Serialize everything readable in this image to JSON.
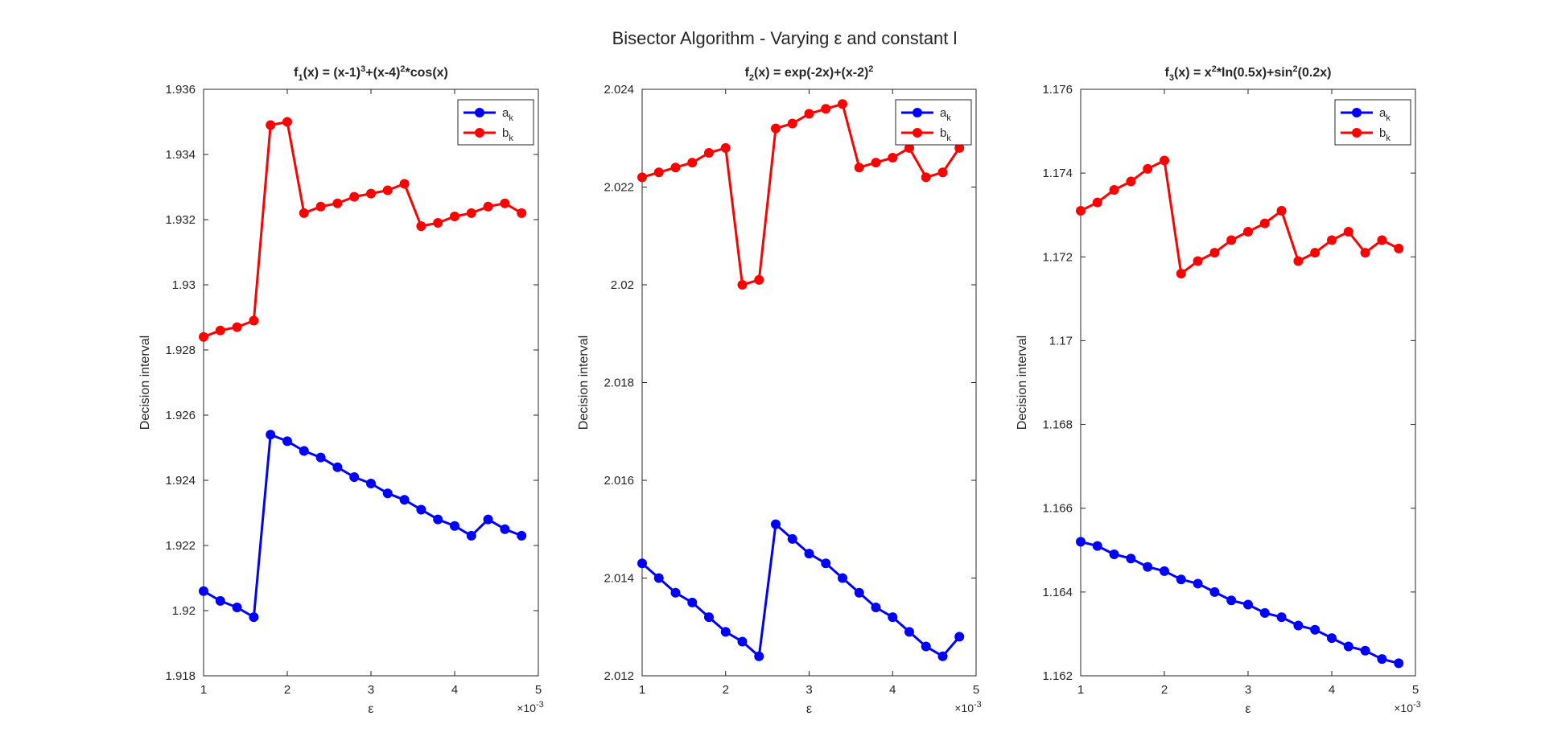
{
  "figure_title": "Bisector Algorithm - Varying ε and constant l",
  "colors": {
    "a_series": "#0000ff",
    "b_series": "#ff0000",
    "axis": "#262626",
    "background": "#ffffff"
  },
  "chart_data": [
    {
      "type": "line",
      "title_main": "f",
      "title_sub": "1",
      "title_expr": [
        {
          "t": "(x) = (x-1)"
        },
        {
          "t": "3",
          "sup": true
        },
        {
          "t": "+(x-4)"
        },
        {
          "t": "2",
          "sup": true
        },
        {
          "t": "*cos(x)"
        }
      ],
      "xlabel": "ε",
      "ylabel": "Decision interval",
      "x_multiplier": "10",
      "x_multiplier_exp": "-3",
      "xlim": [
        1,
        5
      ],
      "ylim": [
        1.918,
        1.936
      ],
      "xticks": [
        1,
        2,
        3,
        4,
        5
      ],
      "xtick_labels": [
        "1",
        "2",
        "3",
        "4",
        "5"
      ],
      "yticks": [
        1.918,
        1.92,
        1.922,
        1.924,
        1.926,
        1.928,
        1.93,
        1.932,
        1.934,
        1.936
      ],
      "ytick_labels": [
        "1.918",
        "1.92",
        "1.922",
        "1.924",
        "1.926",
        "1.928",
        "1.93",
        "1.932",
        "1.934",
        "1.936"
      ],
      "x": [
        1.0,
        1.2,
        1.4,
        1.6,
        1.8,
        2.0,
        2.2,
        2.4,
        2.6,
        2.8,
        3.0,
        3.2,
        3.4,
        3.6,
        3.8,
        4.0,
        4.2,
        4.4,
        4.6,
        4.8
      ],
      "legend_position": "top-right",
      "series": [
        {
          "name": "a",
          "name_sub": "k",
          "color": "#0000ff",
          "values": [
            1.9206,
            1.9203,
            1.9201,
            1.9198,
            1.9254,
            1.9252,
            1.9249,
            1.9247,
            1.9244,
            1.9241,
            1.9239,
            1.9236,
            1.9234,
            1.9231,
            1.9228,
            1.9226,
            1.9223,
            1.9228,
            1.9225,
            1.9223
          ]
        },
        {
          "name": "b",
          "name_sub": "k",
          "color": "#ff0000",
          "values": [
            1.9284,
            1.9286,
            1.9287,
            1.9289,
            1.9349,
            1.935,
            1.9322,
            1.9324,
            1.9325,
            1.9327,
            1.9328,
            1.9329,
            1.9331,
            1.9318,
            1.9319,
            1.9321,
            1.9322,
            1.9324,
            1.9325,
            1.9322
          ]
        }
      ]
    },
    {
      "type": "line",
      "title_main": "f",
      "title_sub": "2",
      "title_expr": [
        {
          "t": "(x) = exp(-2x)+(x-2)"
        },
        {
          "t": "2",
          "sup": true
        }
      ],
      "xlabel": "ε",
      "ylabel": "Decision interval",
      "x_multiplier": "10",
      "x_multiplier_exp": "-3",
      "xlim": [
        1,
        5
      ],
      "ylim": [
        2.012,
        2.024
      ],
      "xticks": [
        1,
        2,
        3,
        4,
        5
      ],
      "xtick_labels": [
        "1",
        "2",
        "3",
        "4",
        "5"
      ],
      "yticks": [
        2.012,
        2.014,
        2.016,
        2.018,
        2.02,
        2.022,
        2.024
      ],
      "ytick_labels": [
        "2.012",
        "2.014",
        "2.016",
        "2.018",
        "2.02",
        "2.022",
        "2.024"
      ],
      "x": [
        1.0,
        1.2,
        1.4,
        1.6,
        1.8,
        2.0,
        2.2,
        2.4,
        2.6,
        2.8,
        3.0,
        3.2,
        3.4,
        3.6,
        3.8,
        4.0,
        4.2,
        4.4,
        4.6,
        4.8
      ],
      "legend_position": "top-right",
      "series": [
        {
          "name": "a",
          "name_sub": "k",
          "color": "#0000ff",
          "values": [
            2.0143,
            2.014,
            2.0137,
            2.0135,
            2.0132,
            2.0129,
            2.0127,
            2.0124,
            2.0151,
            2.0148,
            2.0145,
            2.0143,
            2.014,
            2.0137,
            2.0134,
            2.0132,
            2.0129,
            2.0126,
            2.0124,
            2.0128
          ]
        },
        {
          "name": "b",
          "name_sub": "k",
          "color": "#ff0000",
          "values": [
            2.0222,
            2.0223,
            2.0224,
            2.0225,
            2.0227,
            2.0228,
            2.02,
            2.0201,
            2.0232,
            2.0233,
            2.0235,
            2.0236,
            2.0237,
            2.0224,
            2.0225,
            2.0226,
            2.0228,
            2.0222,
            2.0223,
            2.0228
          ]
        }
      ]
    },
    {
      "type": "line",
      "title_main": "f",
      "title_sub": "3",
      "title_expr": [
        {
          "t": "(x) = x"
        },
        {
          "t": "2",
          "sup": true
        },
        {
          "t": "*ln(0.5x)+sin"
        },
        {
          "t": "2",
          "sup": true
        },
        {
          "t": "(0.2x)"
        }
      ],
      "xlabel": "ε",
      "ylabel": "Decision interval",
      "x_multiplier": "10",
      "x_multiplier_exp": "-3",
      "xlim": [
        1,
        5
      ],
      "ylim": [
        1.162,
        1.176
      ],
      "xticks": [
        1,
        2,
        3,
        4,
        5
      ],
      "xtick_labels": [
        "1",
        "2",
        "3",
        "4",
        "5"
      ],
      "yticks": [
        1.162,
        1.164,
        1.166,
        1.168,
        1.17,
        1.172,
        1.174,
        1.176
      ],
      "ytick_labels": [
        "1.162",
        "1.164",
        "1.166",
        "1.168",
        "1.17",
        "1.172",
        "1.174",
        "1.176"
      ],
      "x": [
        1.0,
        1.2,
        1.4,
        1.6,
        1.8,
        2.0,
        2.2,
        2.4,
        2.6,
        2.8,
        3.0,
        3.2,
        3.4,
        3.6,
        3.8,
        4.0,
        4.2,
        4.4,
        4.6,
        4.8
      ],
      "legend_position": "top-right",
      "series": [
        {
          "name": "a",
          "name_sub": "k",
          "color": "#0000ff",
          "values": [
            1.1652,
            1.1651,
            1.1649,
            1.1648,
            1.1646,
            1.1645,
            1.1643,
            1.1642,
            1.164,
            1.1638,
            1.1637,
            1.1635,
            1.1634,
            1.1632,
            1.1631,
            1.1629,
            1.1627,
            1.1626,
            1.1624,
            1.1623
          ]
        },
        {
          "name": "b",
          "name_sub": "k",
          "color": "#ff0000",
          "values": [
            1.1731,
            1.1733,
            1.1736,
            1.1738,
            1.1741,
            1.1743,
            1.1716,
            1.1719,
            1.1721,
            1.1724,
            1.1726,
            1.1728,
            1.1731,
            1.1719,
            1.1721,
            1.1724,
            1.1726,
            1.1721,
            1.1724,
            1.1722
          ]
        }
      ]
    }
  ]
}
